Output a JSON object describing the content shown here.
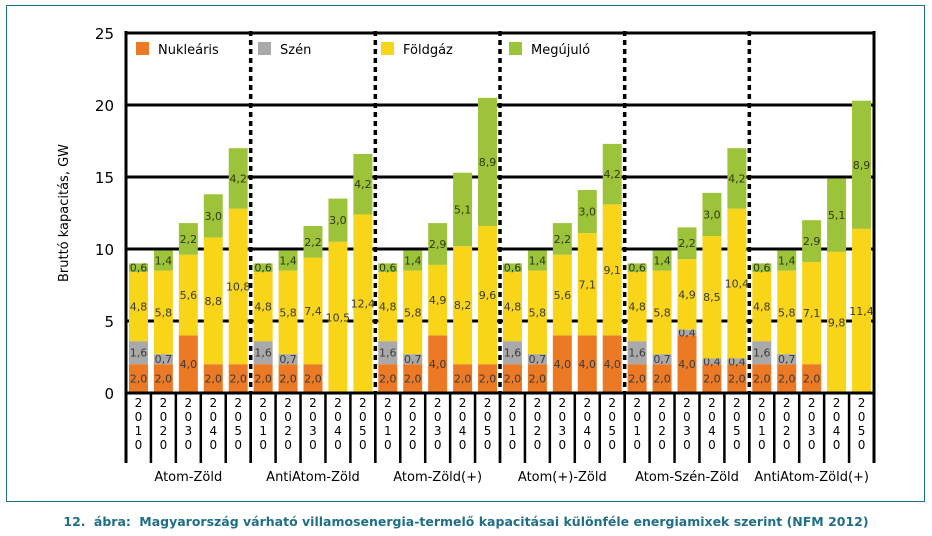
{
  "chart_data": {
    "type": "bar",
    "stacked": true,
    "ylabel": "Bruttó kapacitás, GW",
    "ylim": [
      0,
      25
    ],
    "yticks": [
      0,
      5,
      10,
      15,
      20,
      25
    ],
    "grid": true,
    "legend_position": "top",
    "years": [
      "2010",
      "2020",
      "2030",
      "2040",
      "2050"
    ],
    "legend": [
      {
        "name": "Nukleáris",
        "color": "#ec7a24"
      },
      {
        "name": "Szén",
        "color": "#a9a9a9"
      },
      {
        "name": "Földgáz",
        "color": "#f9d51a"
      },
      {
        "name": "Megújuló",
        "color": "#9dc33b"
      }
    ],
    "scenarios": [
      {
        "name": "Atom-Zöld",
        "nuclear": [
          2.0,
          2.0,
          4.0,
          2.0,
          2.0
        ],
        "coal": [
          1.6,
          0.7,
          0.0,
          0.0,
          0.0
        ],
        "gas": [
          4.8,
          5.8,
          5.6,
          8.8,
          10.8
        ],
        "renewable": [
          0.6,
          1.4,
          2.2,
          3.0,
          4.2
        ],
        "labels": {
          "nuclear": [
            "2,0",
            "2,0",
            "4,0",
            "2,0",
            "2,0"
          ],
          "coal": [
            "1,6",
            "0,7",
            "",
            "",
            ""
          ],
          "gas": [
            "4,8",
            "5,8",
            "5,6",
            "8,8",
            "10,8"
          ],
          "renewable": [
            "0,6",
            "1,4",
            "2,2",
            "3,0",
            "4,2"
          ]
        }
      },
      {
        "name": "AntiAtom-Zöld",
        "nuclear": [
          2.0,
          2.0,
          2.0,
          0.0,
          0.0
        ],
        "coal": [
          1.6,
          0.7,
          0.0,
          0.0,
          0.0
        ],
        "gas": [
          4.8,
          5.8,
          7.4,
          10.5,
          12.4
        ],
        "renewable": [
          0.6,
          1.4,
          2.2,
          3.0,
          4.2
        ],
        "labels": {
          "nuclear": [
            "2,0",
            "2,0",
            "2,0",
            "",
            ""
          ],
          "coal": [
            "1,6",
            "0,7",
            "",
            "",
            ""
          ],
          "gas": [
            "4,8",
            "5,8",
            "7,4",
            "10,5",
            "12,4"
          ],
          "renewable": [
            "0,6",
            "1,4",
            "2,2",
            "3,0",
            "4,2"
          ]
        }
      },
      {
        "name": "Atom-Zöld(+)",
        "nuclear": [
          2.0,
          2.0,
          4.0,
          2.0,
          2.0
        ],
        "coal": [
          1.6,
          0.7,
          0.0,
          0.0,
          0.0
        ],
        "gas": [
          4.8,
          5.8,
          4.9,
          8.2,
          9.6
        ],
        "renewable": [
          0.6,
          1.4,
          2.9,
          5.1,
          8.9
        ],
        "labels": {
          "nuclear": [
            "2,0",
            "2,0",
            "4,0",
            "2,0",
            "2,0"
          ],
          "coal": [
            "1,6",
            "0,7",
            "",
            "",
            ""
          ],
          "gas": [
            "4,8",
            "5,8",
            "4,9",
            "8,2",
            "9,6"
          ],
          "renewable": [
            "0,6",
            "1,4",
            "2,9",
            "5,1",
            "8,9"
          ]
        }
      },
      {
        "name": "Atom(+)-Zöld",
        "nuclear": [
          2.0,
          2.0,
          4.0,
          4.0,
          4.0
        ],
        "coal": [
          1.6,
          0.7,
          0.0,
          0.0,
          0.0
        ],
        "gas": [
          4.8,
          5.8,
          5.6,
          7.1,
          9.1
        ],
        "renewable": [
          0.6,
          1.4,
          2.2,
          3.0,
          4.2
        ],
        "labels": {
          "nuclear": [
            "2,0",
            "2,0",
            "4,0",
            "4,0",
            "4,0"
          ],
          "coal": [
            "1,6",
            "0,7",
            "",
            "",
            ""
          ],
          "gas": [
            "4,8",
            "5,8",
            "5,6",
            "7,1",
            "9,1"
          ],
          "renewable": [
            "0,6",
            "1,4",
            "2,2",
            "3,0",
            "4,2"
          ]
        }
      },
      {
        "name": "Atom-Szén-Zöld",
        "nuclear": [
          2.0,
          2.0,
          4.0,
          2.0,
          2.0
        ],
        "coal": [
          1.6,
          0.7,
          0.4,
          0.4,
          0.4
        ],
        "gas": [
          4.8,
          5.8,
          4.9,
          8.5,
          10.4
        ],
        "renewable": [
          0.6,
          1.4,
          2.2,
          3.0,
          4.2
        ],
        "labels": {
          "nuclear": [
            "2,0",
            "2,0",
            "4,0",
            "2,0",
            "2,0"
          ],
          "coal": [
            "1,6",
            "0,7",
            "0,4",
            "0,4",
            "0,4"
          ],
          "gas": [
            "4,8",
            "5,8",
            "4,9",
            "8,5",
            "10,4"
          ],
          "renewable": [
            "0,6",
            "1,4",
            "2,2",
            "3,0",
            "4,2"
          ]
        }
      },
      {
        "name": "AntiAtom-Zöld(+)",
        "nuclear": [
          2.0,
          2.0,
          2.0,
          0.0,
          0.0
        ],
        "coal": [
          1.6,
          0.7,
          0.0,
          0.0,
          0.0
        ],
        "gas": [
          4.8,
          5.8,
          7.1,
          9.8,
          11.4
        ],
        "renewable": [
          0.6,
          1.4,
          2.9,
          5.1,
          8.9
        ],
        "labels": {
          "nuclear": [
            "2,0",
            "2,0",
            "2,0",
            "",
            ""
          ],
          "coal": [
            "1,6",
            "0,7",
            "",
            "",
            ""
          ],
          "gas": [
            "4,8",
            "5,8",
            "7,1",
            "9,8",
            "11,4"
          ],
          "renewable": [
            "0,6",
            "1,4",
            "2,9",
            "5,1",
            "8,9"
          ]
        }
      }
    ]
  },
  "caption": {
    "number": "12.",
    "label": "ábra:",
    "text": "Magyarország várható villamosenergia-termelő kapacitásai különféle energiamixek szerint (NFM 2012)"
  }
}
